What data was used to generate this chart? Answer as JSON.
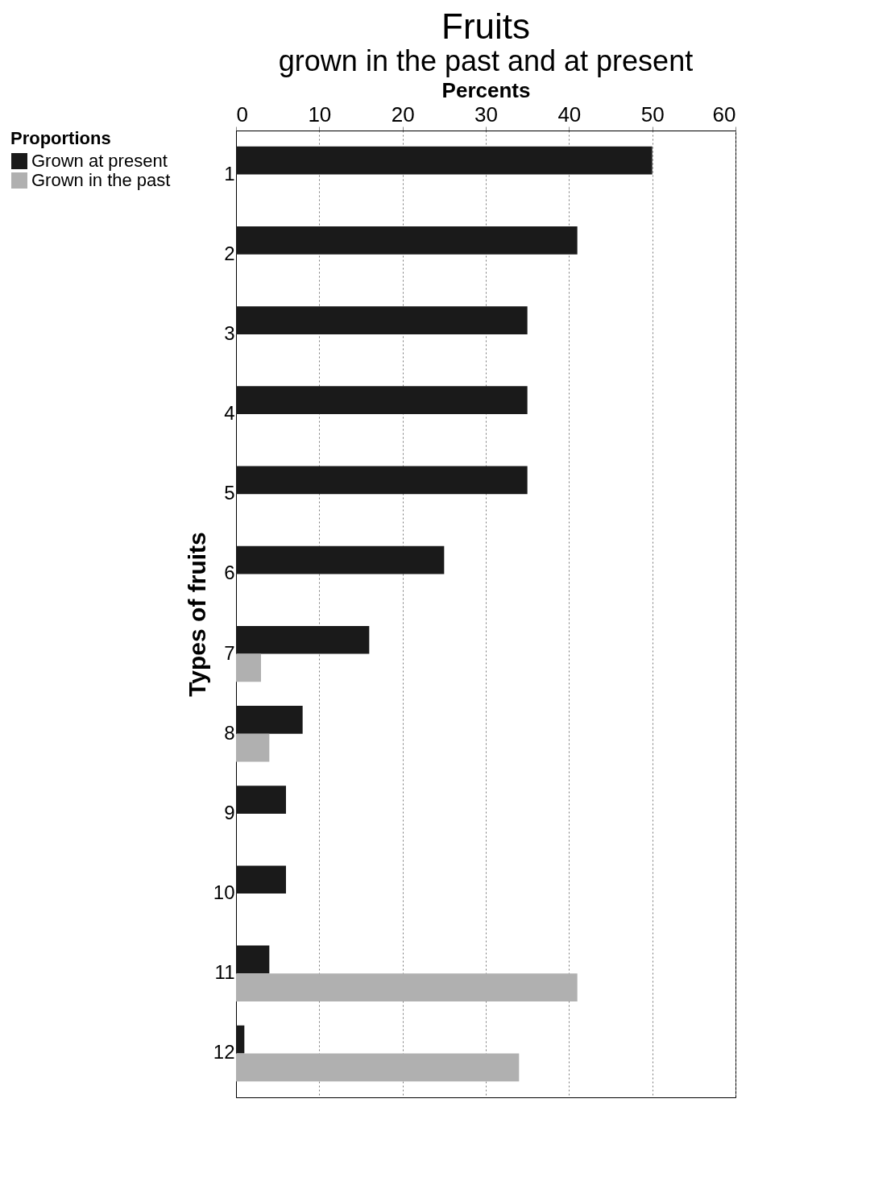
{
  "chart_data": {
    "type": "bar",
    "orientation": "horizontal",
    "title": "Fruits",
    "subtitle": "grown in the past and at present",
    "xlabel": "Percents",
    "ylabel": "Types of fruits",
    "legend_title": "Proportions",
    "categories": [
      "1",
      "2",
      "3",
      "4",
      "5",
      "6",
      "7",
      "8",
      "9",
      "10",
      "11",
      "12"
    ],
    "series": [
      {
        "name": "Grown at present",
        "color": "#1a1a1a",
        "values": [
          50,
          41,
          35,
          35,
          35,
          25,
          16,
          8,
          6,
          6,
          4,
          1
        ]
      },
      {
        "name": "Grown in the past",
        "color": "#b0b0b0",
        "values": [
          null,
          null,
          null,
          null,
          null,
          null,
          3,
          4,
          null,
          null,
          41,
          34
        ]
      }
    ],
    "xlim": [
      0,
      60
    ],
    "xticks": [
      0,
      10,
      20,
      30,
      40,
      50,
      60
    ],
    "grid": "x",
    "legend": "left"
  }
}
